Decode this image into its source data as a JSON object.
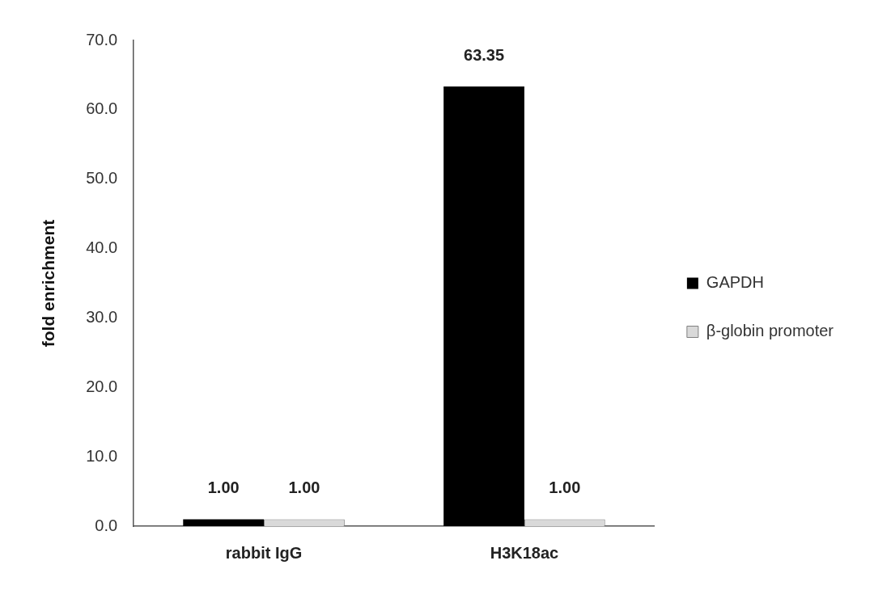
{
  "chart_data": {
    "type": "bar",
    "y_label": "fold enrichment",
    "categories": [
      "rabbit IgG",
      "H3K18ac"
    ],
    "series": [
      {
        "name": "GAPDH",
        "color": "#000000",
        "values": [
          1,
          63.35
        ],
        "value_labels": [
          "1.00",
          "63.35"
        ]
      },
      {
        "name": "β-globin promoter",
        "color": "#d9d9d9",
        "values": [
          1,
          1
        ],
        "value_labels": [
          "1.00",
          "1.00"
        ]
      }
    ],
    "ylim": [
      0,
      70
    ],
    "yticks": [
      {
        "value": 0,
        "label": "0.0"
      },
      {
        "value": 10,
        "label": "10.0"
      },
      {
        "value": 20,
        "label": "20.0"
      },
      {
        "value": 30,
        "label": "30.0"
      },
      {
        "value": 40,
        "label": "40.0"
      },
      {
        "value": 50,
        "label": "50.0"
      },
      {
        "value": 60,
        "label": "60.0"
      },
      {
        "value": 70,
        "label": "70.0"
      }
    ],
    "grid": false,
    "legend": "right",
    "data_labels": true
  }
}
